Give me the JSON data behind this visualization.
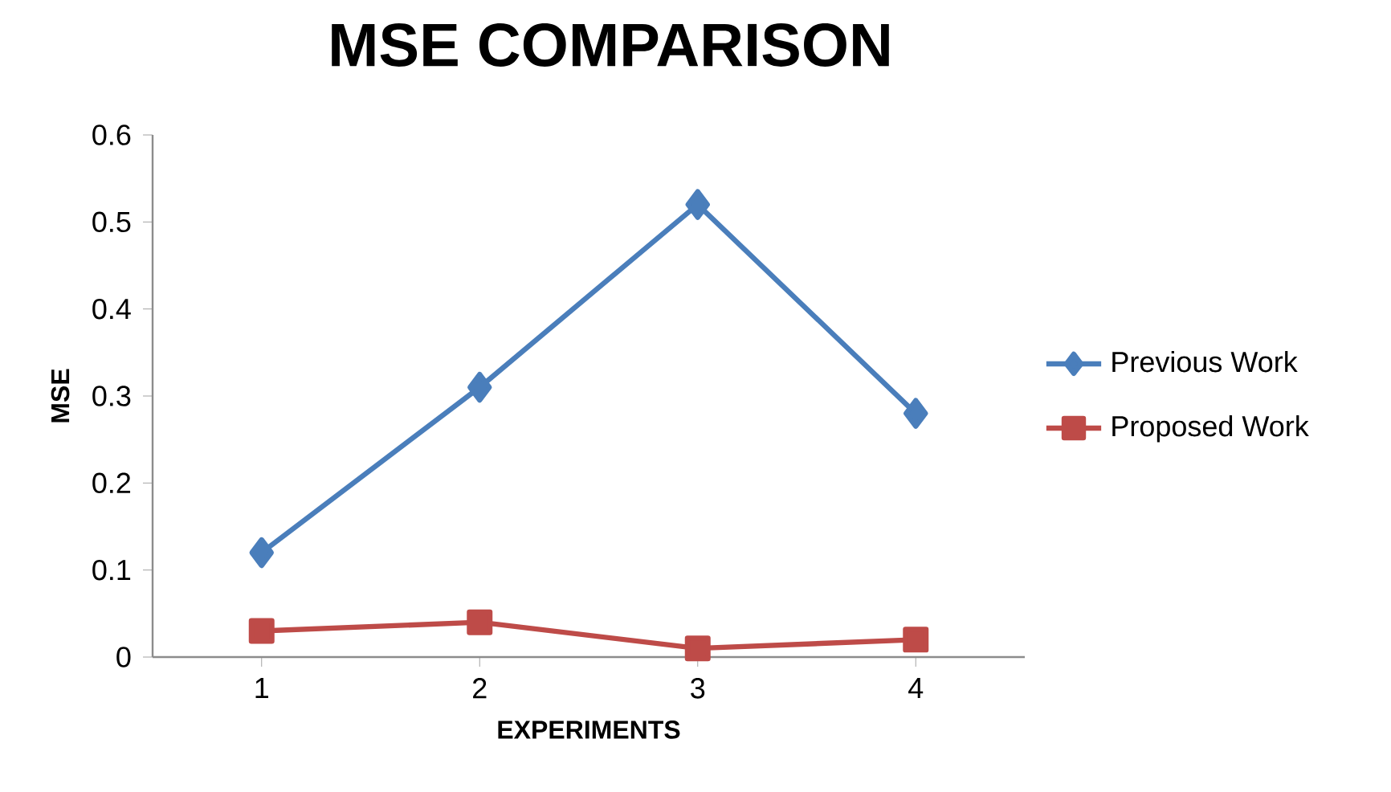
{
  "chart_data": {
    "type": "line",
    "title": "MSE COMPARISON",
    "xlabel": "EXPERIMENTS",
    "ylabel": "MSE",
    "categories": [
      "1",
      "2",
      "3",
      "4"
    ],
    "series": [
      {
        "name": "Previous Work",
        "color": "#4a7ebb",
        "marker": "diamond",
        "values": [
          0.12,
          0.31,
          0.52,
          0.28
        ]
      },
      {
        "name": "Proposed Work",
        "color": "#be4b48",
        "marker": "square",
        "values": [
          0.03,
          0.04,
          0.01,
          0.02
        ]
      }
    ],
    "ylim": [
      0,
      0.6
    ],
    "yticks": [
      0,
      0.1,
      0.2,
      0.3,
      0.4,
      0.5,
      0.6
    ],
    "legend": "right"
  }
}
